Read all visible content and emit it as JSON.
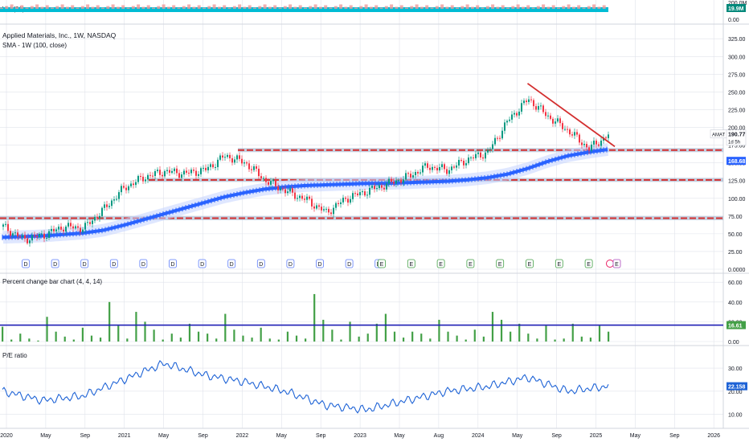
{
  "colors": {
    "up": "#26a69a",
    "down": "#ef5350",
    "bull_candle": "#089981",
    "bear_candle": "#f23645",
    "sma": "#2962ff",
    "resistance": "#d32f2f",
    "trendline": "#d32f2f",
    "osc_bar": "#43a047",
    "osc_line": "#1e1eb4",
    "pe_line": "#1e63d6",
    "vol_area": "#00bcd4",
    "grid": "#e0e3eb"
  },
  "volume_pane": {
    "indicator": "Vol (21)",
    "axis_ticks": [
      "0.00"
    ],
    "top_label": "200.0M",
    "badge": "19.9M"
  },
  "price_pane": {
    "title": "Applied Materials, Inc., 1W, NASDAQ",
    "indicator": "SMA - 1W (100, close)",
    "axis_ticks": [
      "325.00",
      "300.00",
      "275.00",
      "250.00",
      "225.00",
      "200.00",
      "175.00",
      "150.00",
      "125.00",
      "100.00",
      "75.00",
      "50.00",
      "25.00",
      "0.0000"
    ],
    "symbol_tag": "AMAT",
    "price_badge": "190.77",
    "countdown": "1d 5h",
    "sma_badge": "168.68",
    "dividend_marker": "D",
    "earnings_marker": "E"
  },
  "oscillator_pane": {
    "title": "Percent change bar chart (4, 4, 14)",
    "axis_ticks": [
      "60.00",
      "40.00",
      "20.00",
      "0.00"
    ],
    "badge": "16.61"
  },
  "pe_pane": {
    "title": "P/E ratio",
    "axis_ticks": [
      "30.00",
      "20.00",
      "10.00"
    ],
    "badge": "22.158"
  },
  "time_axis": [
    "2020",
    "May",
    "Sep",
    "2021",
    "May",
    "Sep",
    "2022",
    "May",
    "Sep",
    "2023",
    "May",
    "Aug",
    "2024",
    "May",
    "Sep",
    "2025",
    "May",
    "Sep",
    "2026"
  ],
  "chart_data": [
    {
      "type": "line",
      "title": "Applied Materials, Inc., 1W, NASDAQ",
      "series": [
        {
          "name": "AMAT",
          "x": [
            "2020-01",
            "2020-03",
            "2020-05",
            "2020-07",
            "2020-09",
            "2020-11",
            "2021-01",
            "2021-03",
            "2021-05",
            "2021-07",
            "2021-09",
            "2021-11",
            "2022-01",
            "2022-03",
            "2022-05",
            "2022-07",
            "2022-09",
            "2022-11",
            "2023-01",
            "2023-03",
            "2023-05",
            "2023-07",
            "2023-09",
            "2023-11",
            "2024-01",
            "2024-03",
            "2024-05",
            "2024-07",
            "2024-09",
            "2024-11",
            "2025-01"
          ],
          "values": [
            60,
            42,
            48,
            60,
            58,
            85,
            115,
            130,
            138,
            135,
            140,
            160,
            150,
            125,
            110,
            98,
            80,
            100,
            110,
            120,
            130,
            145,
            140,
            155,
            165,
            210,
            240,
            215,
            195,
            170,
            190
          ]
        },
        {
          "name": "SMA - 1W (100, close)",
          "values": [
            45,
            46,
            47,
            49,
            51,
            55,
            62,
            70,
            78,
            86,
            94,
            102,
            108,
            113,
            116,
            118,
            119,
            120,
            121,
            121,
            122,
            123,
            124,
            126,
            129,
            134,
            142,
            152,
            160,
            165,
            169
          ]
        }
      ],
      "horizontal_levels": [
        168,
        126,
        72
      ],
      "trendline": {
        "from": {
          "x": "2024-05",
          "y": 262
        },
        "to": {
          "x": "2025-01",
          "y": 173
        }
      },
      "ylim": [
        0,
        340
      ]
    },
    {
      "type": "bar",
      "title": "Percent change bar chart (4, 4, 14)",
      "values": [
        15,
        2,
        8,
        3,
        1,
        25,
        10,
        5,
        2,
        14,
        6,
        4,
        40,
        16,
        3,
        30,
        20,
        12,
        2,
        8,
        4,
        18,
        10,
        8,
        3,
        28,
        12,
        6,
        4,
        14,
        3,
        2,
        10,
        6,
        3,
        48,
        22,
        12,
        2,
        20,
        5,
        8,
        18,
        28,
        10,
        4,
        10,
        8,
        3,
        22,
        10,
        6,
        2,
        12,
        5,
        30,
        22,
        10,
        18,
        8,
        3,
        16,
        2,
        3,
        18,
        5,
        4,
        16,
        10
      ],
      "level": 16.61,
      "ylim": [
        0,
        65
      ]
    },
    {
      "type": "line",
      "title": "P/E ratio",
      "x": [
        "2020-01",
        "2020-05",
        "2020-09",
        "2021-01",
        "2021-05",
        "2021-09",
        "2022-01",
        "2022-05",
        "2022-09",
        "2023-01",
        "2023-05",
        "2023-09",
        "2024-01",
        "2024-05",
        "2024-09",
        "2025-01"
      ],
      "values": [
        20,
        16,
        18,
        25,
        32,
        27,
        24,
        20,
        14,
        12,
        16,
        20,
        22,
        26,
        20,
        22.158
      ],
      "ylim": [
        5,
        38
      ]
    }
  ]
}
